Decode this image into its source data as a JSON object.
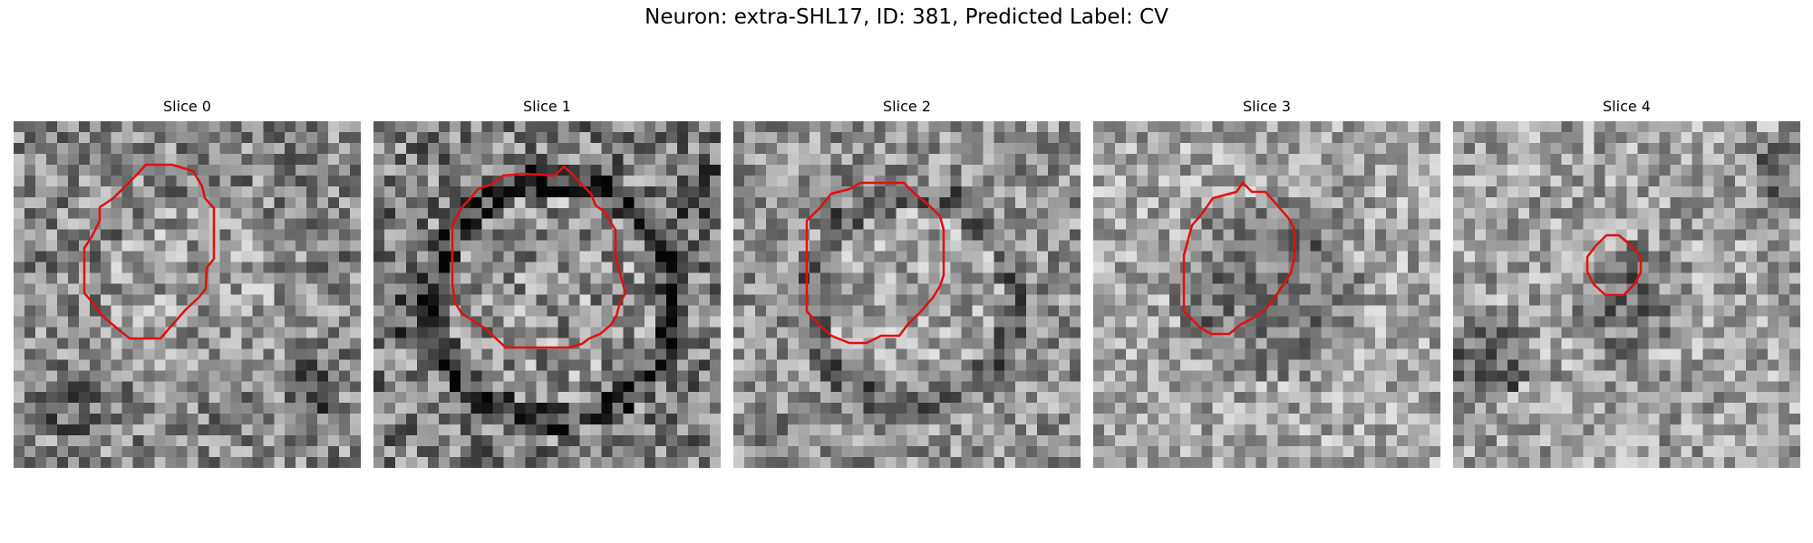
{
  "title": "Neuron: extra-SHL17, ID: 381, Predicted Label: CV",
  "panels": [
    {
      "title": "Slice 0",
      "image": "noisy grayscale EM crop with large light ring",
      "contour_color": "#e01010"
    },
    {
      "title": "Slice 1",
      "image": "noisy grayscale EM crop with dark membrane ring",
      "contour_color": "#e01010"
    },
    {
      "title": "Slice 2",
      "image": "noisy grayscale EM crop with round light vesicle",
      "contour_color": "#e01010"
    },
    {
      "title": "Slice 3",
      "image": "noisy grayscale EM crop with dark cluster",
      "contour_color": "#e01010"
    },
    {
      "title": "Slice 4",
      "image": "noisy grayscale EM crop with small dark spot",
      "contour_color": "#e01010"
    }
  ]
}
